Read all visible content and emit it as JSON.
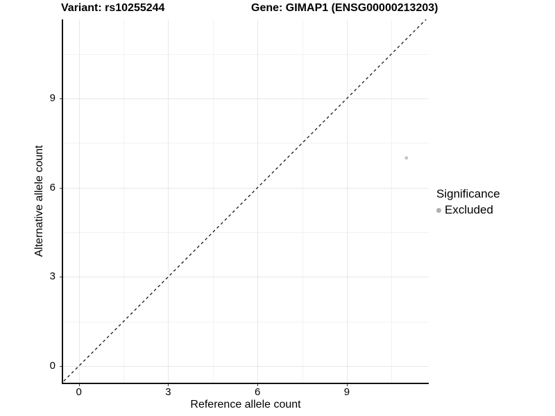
{
  "titles": {
    "variant": "Variant: rs10255244",
    "gene": "Gene: GIMAP1 (ENSG00000213203)"
  },
  "chart_data": {
    "type": "scatter",
    "xlabel": "Reference allele count",
    "ylabel": "Alternative allele count",
    "xlim": [
      -0.55,
      11.75
    ],
    "ylim": [
      -0.56,
      11.66
    ],
    "x_ticks": [
      0,
      3,
      6,
      9
    ],
    "y_ticks": [
      0,
      3,
      6,
      9
    ],
    "x_minor_gridlines": [
      1.5,
      4.5,
      7.5,
      10.5
    ],
    "y_minor_gridlines": [
      1.5,
      4.5,
      7.5,
      10.5
    ],
    "grid": "major and minor, light grey on white",
    "identity_line": {
      "equation": "y = x",
      "style": "dashed",
      "color": "#000000"
    },
    "series": [
      {
        "name": "Excluded",
        "color": "#c3c3c3",
        "points": [
          {
            "x": 11,
            "y": 7
          }
        ]
      }
    ],
    "legend": {
      "title": "Significance",
      "position": "right",
      "entries": [
        {
          "label": "Excluded",
          "color": "#b0b0b0"
        }
      ]
    }
  },
  "colors": {
    "background": "#ffffff",
    "grid_major": "#e7e7e7",
    "grid_minor": "#f2f2f2",
    "axis": "#111111",
    "text": "#000000"
  }
}
